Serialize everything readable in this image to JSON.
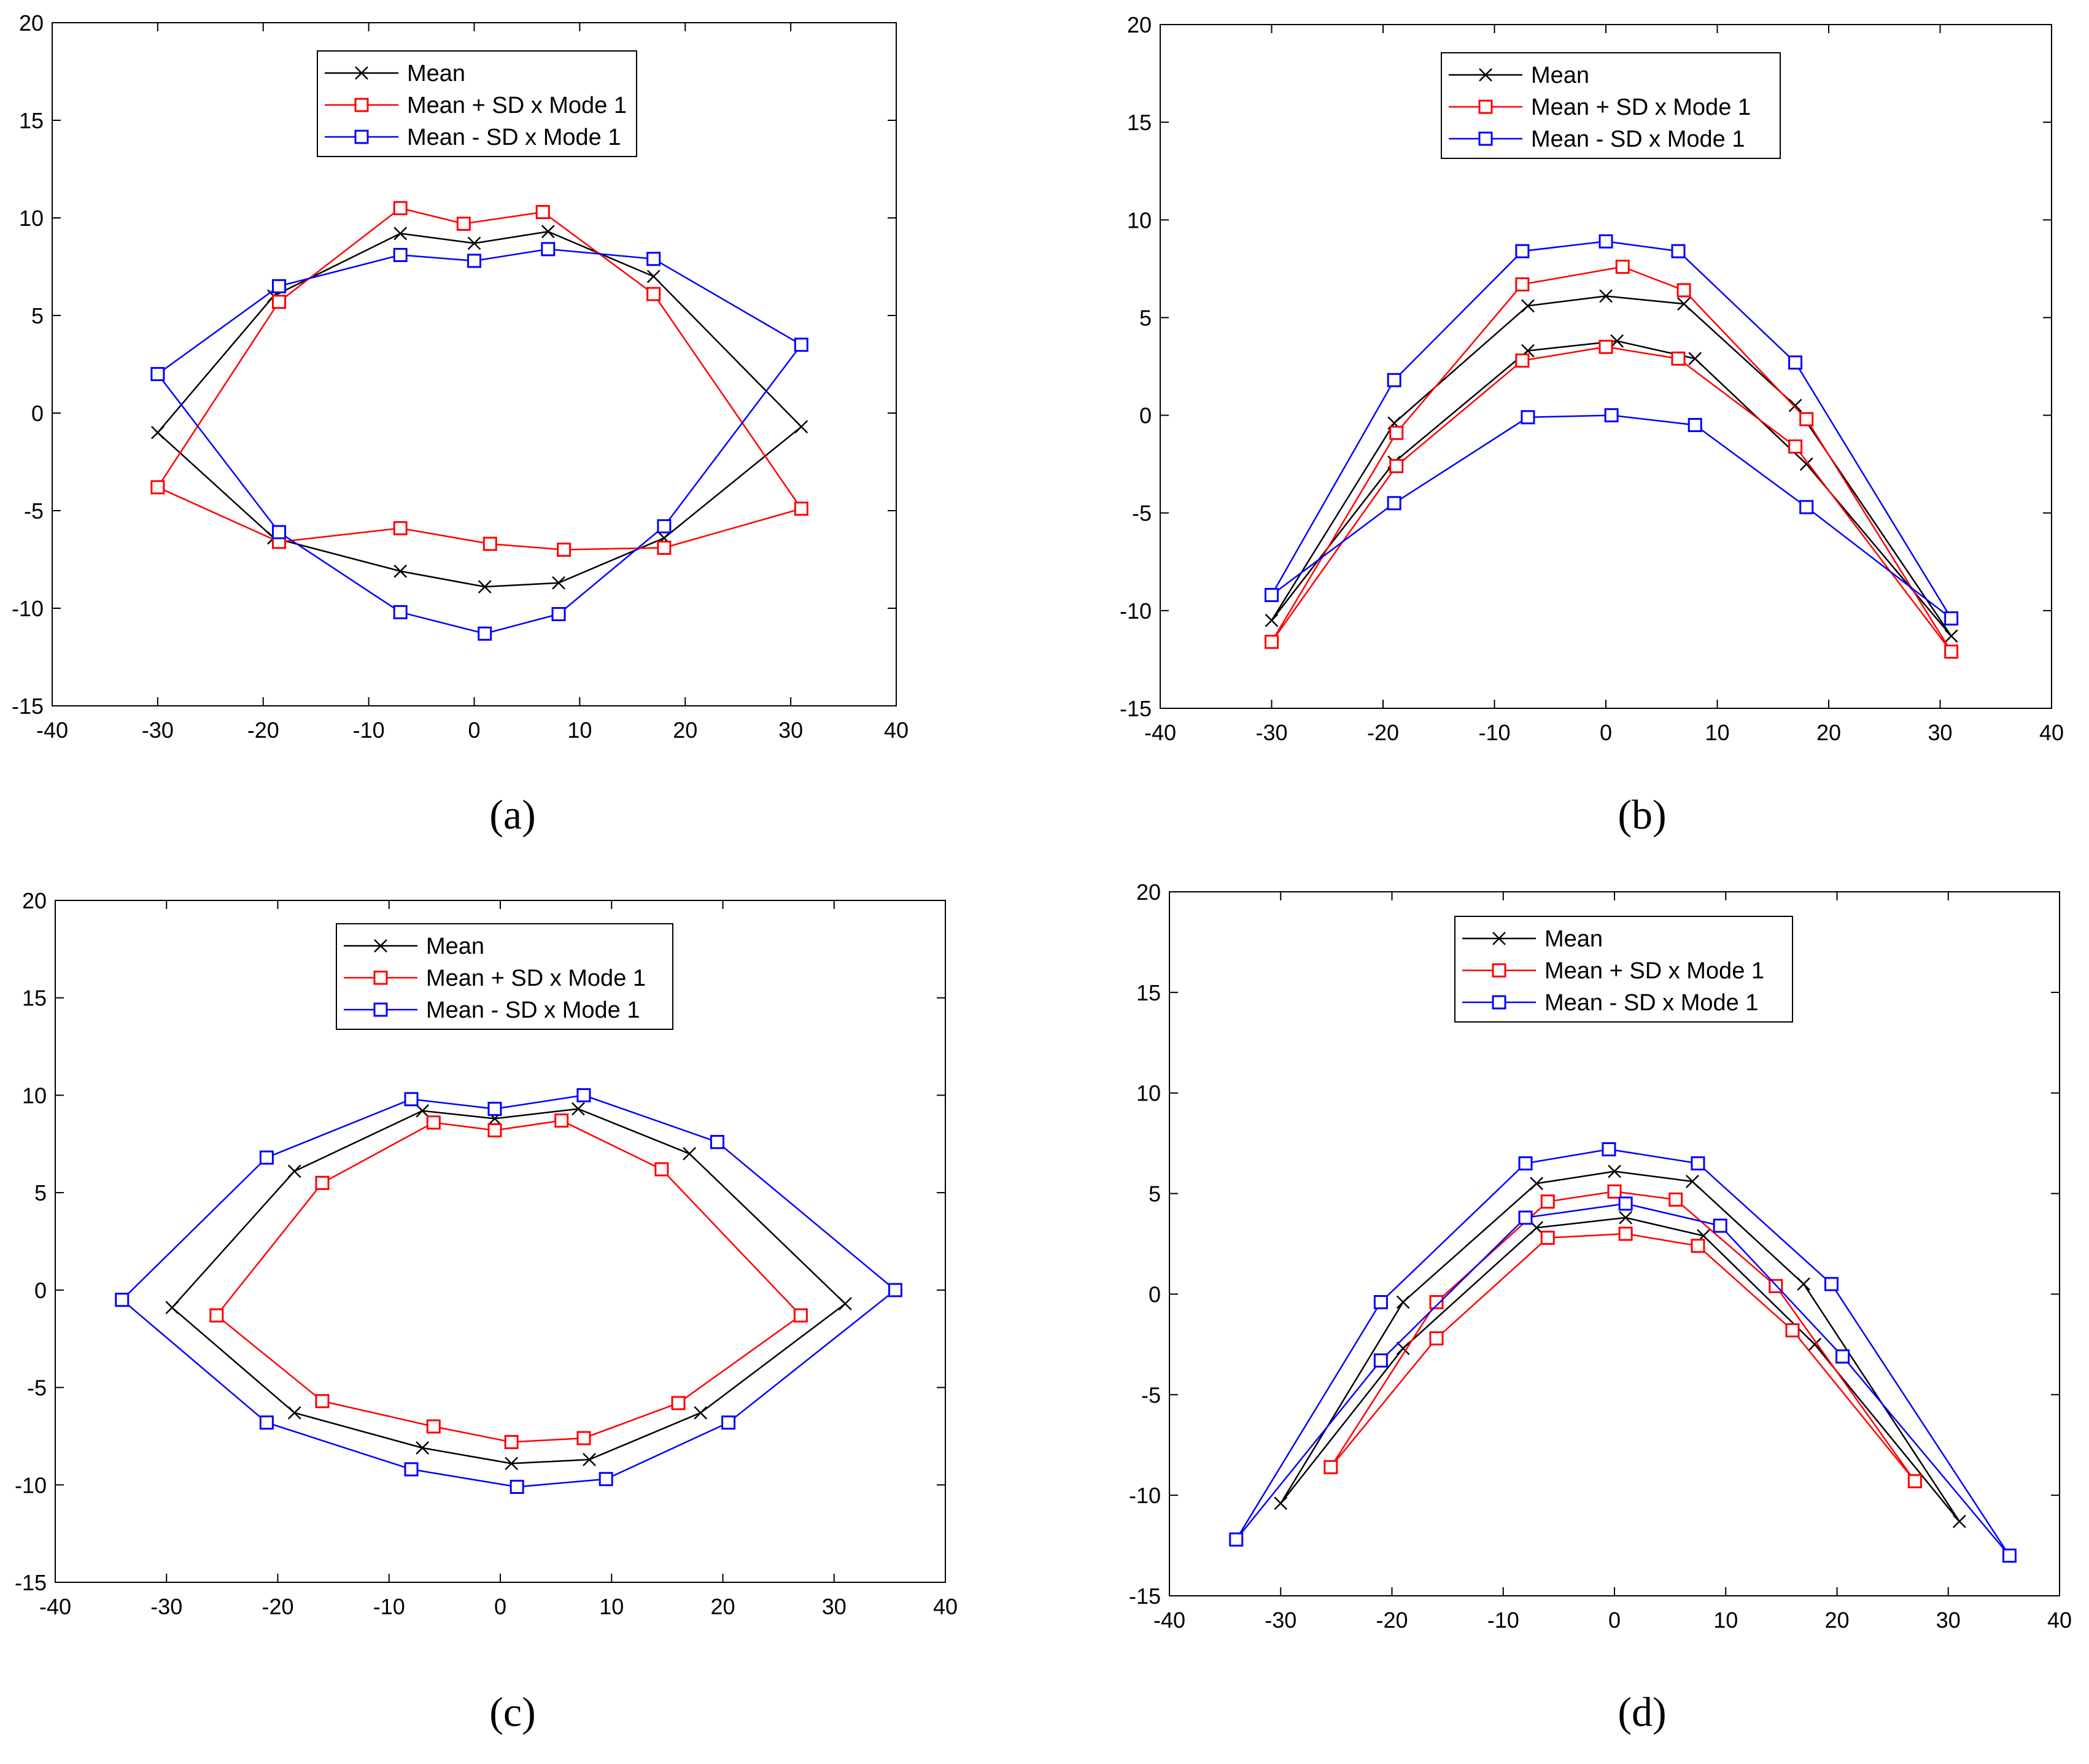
{
  "chart_data": [
    {
      "type": "line",
      "panel": "a",
      "caption": "(a)",
      "xlim": [
        -40,
        40
      ],
      "ylim": [
        -15,
        20
      ],
      "xticks": [
        "-40",
        "-30",
        "-20",
        "-10",
        "0",
        "10",
        "20",
        "30",
        "40"
      ],
      "yticks": [
        "-15",
        "-10",
        "-5",
        "0",
        "5",
        "10",
        "15",
        "20"
      ],
      "legend_position": "top-center",
      "series": [
        {
          "name": "Mean",
          "color": "#000000",
          "marker": "x",
          "x": [
            -30,
            -19,
            -7,
            0,
            7,
            17,
            31,
            18,
            8,
            1,
            -7,
            -19,
            -30
          ],
          "y": [
            -1,
            6,
            9.2,
            8.7,
            9.3,
            7,
            -0.7,
            -6.4,
            -8.7,
            -8.9,
            -8.1,
            -6.4,
            -1
          ]
        },
        {
          "name": "Mean + SD x Mode 1",
          "color": "#ff0000",
          "marker": "square",
          "x": [
            -30,
            -18.5,
            -7,
            -1,
            6.5,
            17,
            31,
            18,
            8.5,
            1.5,
            -7,
            -18.5,
            -30
          ],
          "y": [
            -3.8,
            5.7,
            10.5,
            9.7,
            10.3,
            6.1,
            -4.9,
            -6.9,
            -7,
            -6.7,
            -5.9,
            -6.6,
            -3.8
          ]
        },
        {
          "name": "Mean - SD x Mode 1",
          "color": "#0000ff",
          "marker": "square",
          "x": [
            -30,
            -18.5,
            -7,
            0,
            7,
            17,
            31,
            18,
            8,
            1,
            -7,
            -18.5,
            -30
          ],
          "y": [
            2,
            6.5,
            8.1,
            7.8,
            8.4,
            7.9,
            3.5,
            -5.8,
            -10.3,
            -11.3,
            -10.2,
            -6.1,
            2
          ]
        }
      ]
    },
    {
      "type": "line",
      "panel": "b",
      "caption": "(b)",
      "xlim": [
        -40,
        40
      ],
      "ylim": [
        -15,
        20
      ],
      "xticks": [
        "-40",
        "-30",
        "-20",
        "-10",
        "0",
        "10",
        "20",
        "30",
        "40"
      ],
      "yticks": [
        "-15",
        "-10",
        "-5",
        "0",
        "5",
        "10",
        "15",
        "20"
      ],
      "legend_position": "top-center",
      "series": [
        {
          "name": "Mean",
          "color": "#000000",
          "marker": "x",
          "x": [
            -30,
            -19,
            -7,
            0,
            7,
            17,
            31,
            18,
            8,
            1,
            -7,
            -19,
            -30
          ],
          "y": [
            -10.5,
            -0.4,
            5.6,
            6.1,
            5.7,
            0.5,
            -11.3,
            -2.5,
            2.9,
            3.8,
            3.3,
            -2.4,
            -10.5
          ]
        },
        {
          "name": "Mean + SD x Mode 1",
          "color": "#ff0000",
          "marker": "square",
          "x": [
            -30,
            -18.8,
            -7.5,
            1.5,
            7,
            18,
            31,
            17,
            6.5,
            0,
            -7.5,
            -18.8,
            -30
          ],
          "y": [
            -11.6,
            -0.9,
            6.7,
            7.6,
            6.4,
            -0.2,
            -12.1,
            -1.6,
            2.9,
            3.5,
            2.8,
            -2.6,
            -11.6
          ]
        },
        {
          "name": "Mean - SD x Mode 1",
          "color": "#0000ff",
          "marker": "square",
          "x": [
            -30,
            -19,
            -7.5,
            0,
            6.5,
            17,
            31,
            18,
            8,
            0.5,
            -7,
            -19,
            -30
          ],
          "y": [
            -9.2,
            1.8,
            8.4,
            8.9,
            8.4,
            2.7,
            -10.4,
            -4.7,
            -0.5,
            0,
            -0.1,
            -4.5,
            -9.2
          ]
        }
      ]
    },
    {
      "type": "line",
      "panel": "c",
      "caption": "(c)",
      "xlim": [
        -40,
        40
      ],
      "ylim": [
        -15,
        20
      ],
      "xticks": [
        "-40",
        "-30",
        "-20",
        "-10",
        "0",
        "10",
        "20",
        "30",
        "40"
      ],
      "yticks": [
        "-15",
        "-10",
        "-5",
        "0",
        "5",
        "10",
        "15",
        "20"
      ],
      "legend_position": "top-center",
      "series": [
        {
          "name": "Mean",
          "color": "#000000",
          "marker": "x",
          "x": [
            -29.5,
            -18.5,
            -7,
            -0.5,
            7,
            17,
            31,
            18,
            8,
            1,
            -7,
            -18.5,
            -29.5
          ],
          "y": [
            -0.9,
            6.1,
            9.2,
            8.8,
            9.3,
            7,
            -0.7,
            -6.3,
            -8.7,
            -8.9,
            -8.1,
            -6.3,
            -0.9
          ]
        },
        {
          "name": "Mean + SD x Mode 1",
          "color": "#ff0000",
          "marker": "square",
          "x": [
            -25.5,
            -16,
            -6,
            -0.5,
            5.5,
            14.5,
            27,
            16,
            7.5,
            1,
            -6,
            -16,
            -25.5
          ],
          "y": [
            -1.3,
            5.5,
            8.6,
            8.2,
            8.7,
            6.2,
            -1.3,
            -5.8,
            -7.6,
            -7.8,
            -7,
            -5.7,
            -1.3
          ]
        },
        {
          "name": "Mean - SD x Mode 1",
          "color": "#0000ff",
          "marker": "square",
          "x": [
            -34,
            -21,
            -8,
            -0.5,
            7.5,
            19.5,
            35.5,
            20.5,
            9.5,
            1.5,
            -8,
            -21,
            -34
          ],
          "y": [
            -0.5,
            6.8,
            9.8,
            9.3,
            10,
            7.6,
            0,
            -6.8,
            -9.7,
            -10.1,
            -9.2,
            -6.8,
            -0.5
          ]
        }
      ]
    },
    {
      "type": "line",
      "panel": "d",
      "caption": "(d)",
      "xlim": [
        -40,
        40
      ],
      "ylim": [
        -15,
        20
      ],
      "xticks": [
        "-40",
        "-30",
        "-20",
        "-10",
        "0",
        "10",
        "20",
        "30",
        "40"
      ],
      "yticks": [
        "-15",
        "-10",
        "-5",
        "0",
        "5",
        "10",
        "15",
        "20"
      ],
      "legend_position": "top-center",
      "series": [
        {
          "name": "Mean",
          "color": "#000000",
          "marker": "x",
          "x": [
            -30,
            -19,
            -7,
            0,
            7,
            17,
            31,
            18,
            8,
            1,
            -7,
            -19,
            -30
          ],
          "y": [
            -10.4,
            -0.4,
            5.5,
            6.1,
            5.6,
            0.5,
            -11.3,
            -2.5,
            2.9,
            3.8,
            3.3,
            -2.7,
            -10.4
          ]
        },
        {
          "name": "Mean + SD x Mode 1",
          "color": "#ff0000",
          "marker": "square",
          "x": [
            -25.5,
            -16,
            -6,
            0,
            5.5,
            14.5,
            27,
            16,
            7.5,
            1,
            -6,
            -16,
            -25.5
          ],
          "y": [
            -8.6,
            -0.4,
            4.6,
            5.1,
            4.7,
            0.4,
            -9.3,
            -1.8,
            2.4,
            3,
            2.8,
            -2.2,
            -8.6
          ]
        },
        {
          "name": "Mean - SD x Mode 1",
          "color": "#0000ff",
          "marker": "square",
          "x": [
            -34,
            -21,
            -8,
            -0.5,
            7.5,
            19.5,
            35.5,
            20.5,
            9.5,
            1,
            -8,
            -21,
            -34
          ],
          "y": [
            -12.2,
            -0.4,
            6.5,
            7.2,
            6.5,
            0.5,
            -13,
            -3.1,
            3.4,
            4.5,
            3.8,
            -3.3,
            -12.2
          ]
        }
      ]
    }
  ]
}
